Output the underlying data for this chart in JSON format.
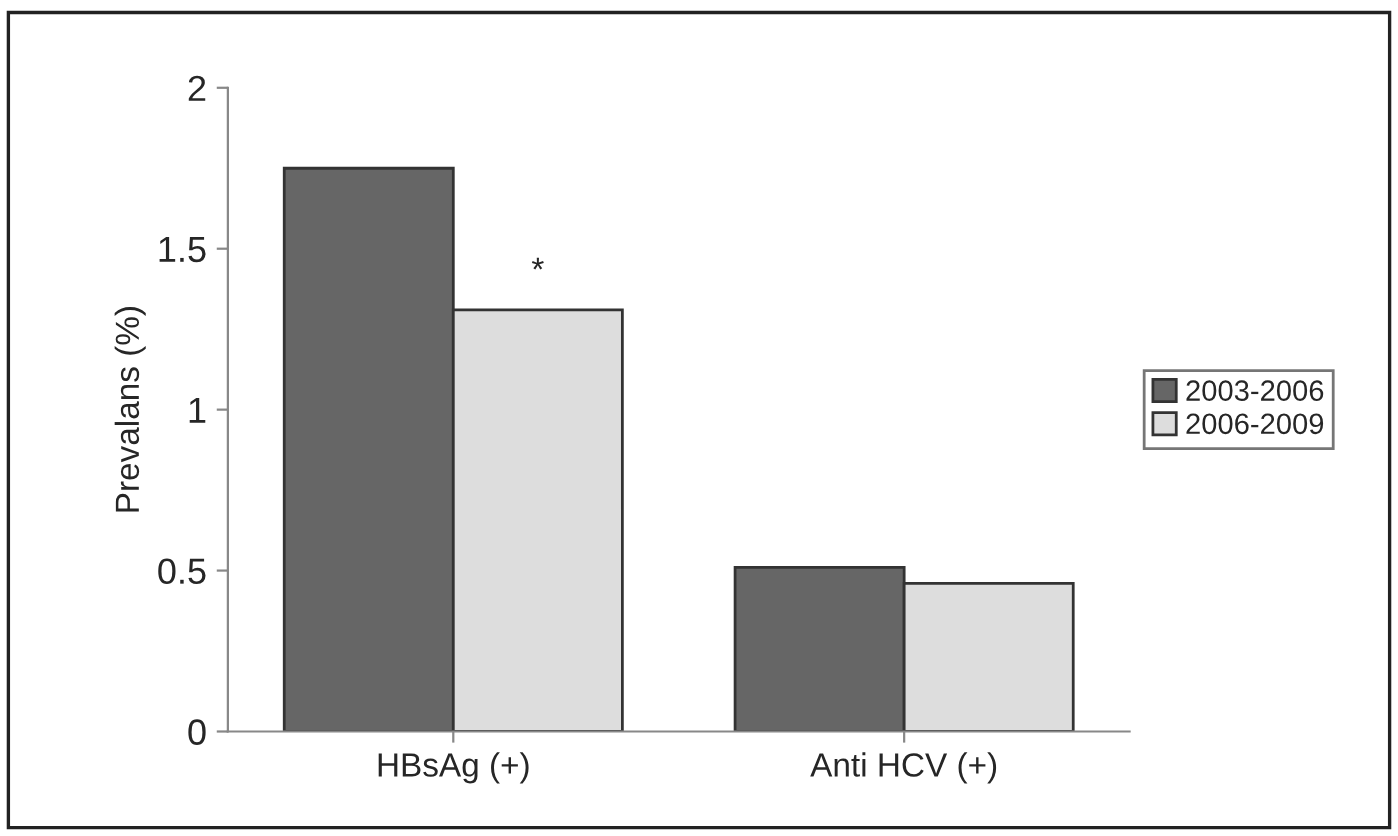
{
  "chart_data": {
    "type": "bar",
    "ylabel": "Prevalans (%)",
    "categories": [
      "HBsAg (+)",
      "Anti HCV (+)"
    ],
    "series": [
      {
        "name": "2003-2006",
        "color": "#666666",
        "values": [
          1.75,
          0.51
        ]
      },
      {
        "name": "2006-2009",
        "color": "#dddddd",
        "values": [
          1.31,
          0.46
        ]
      }
    ],
    "ylim": [
      0,
      2
    ],
    "yticks": [
      0,
      0.5,
      1,
      {
        "value": 1.5,
        "label": "1.5"
      },
      2
    ],
    "annotations": [
      {
        "text": "*",
        "x": "HBsAg (+)",
        "y": 1.31
      }
    ],
    "grid": false,
    "legend": "right"
  }
}
